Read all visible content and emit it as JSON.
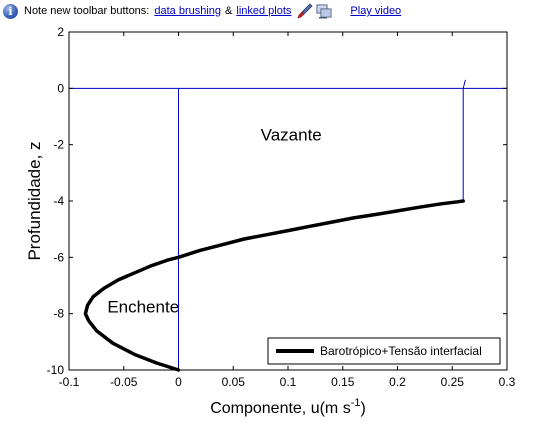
{
  "info_bar": {
    "icon": "info-icon",
    "message": "Note new toolbar buttons:",
    "link_brushing": "data brushing",
    "ampersand": "&",
    "link_linked": "linked plots",
    "brush_icon": "brush-icon",
    "linked_plots_icon": "linked-plots-icon",
    "play_video": "Play video"
  },
  "chart_data": {
    "type": "line",
    "xlabel": "Componente, u(m s",
    "xlabel_superscript": "-1",
    "xlabel_suffix": ")",
    "ylabel": "Profundidade, z",
    "xlim": [
      -0.1,
      0.3
    ],
    "ylim": [
      -10,
      2
    ],
    "xticks": [
      -0.1,
      -0.05,
      0,
      0.05,
      0.1,
      0.15,
      0.2,
      0.25,
      0.3
    ],
    "xtick_labels": [
      "-0.1",
      "-0.05",
      "0",
      "0.05",
      "0.1",
      "0.15",
      "0.2",
      "0.25",
      "0.3"
    ],
    "yticks": [
      -10,
      -8,
      -6,
      -4,
      -2,
      0,
      2
    ],
    "ytick_labels": [
      "-10",
      "-8",
      "-6",
      "-4",
      "-2",
      "0",
      "2"
    ],
    "grid": false,
    "legend_placement": "bottom-right",
    "series": [
      {
        "name": "Barotrópico+Tensão interfacial",
        "color": "#000000",
        "x": [
          0.0,
          -0.02,
          -0.04,
          -0.06,
          -0.075,
          -0.082,
          -0.085,
          -0.083,
          -0.078,
          -0.068,
          -0.055,
          -0.04,
          -0.025,
          -0.01,
          0.0,
          0.02,
          0.04,
          0.06,
          0.08,
          0.1,
          0.12,
          0.14,
          0.16,
          0.18,
          0.2,
          0.22,
          0.24,
          0.255,
          0.26
        ],
        "y": [
          -10.0,
          -9.75,
          -9.45,
          -9.05,
          -8.6,
          -8.25,
          -8.0,
          -7.7,
          -7.4,
          -7.1,
          -6.8,
          -6.55,
          -6.3,
          -6.1,
          -6.0,
          -5.75,
          -5.55,
          -5.35,
          -5.2,
          -5.05,
          -4.9,
          -4.75,
          -4.6,
          -4.48,
          -4.35,
          -4.22,
          -4.1,
          -4.03,
          -4.0
        ]
      }
    ],
    "reference_lines": {
      "color": "#0000cc",
      "horizontal_y": 0,
      "vertical_x": 0,
      "vertical_y_range": [
        -10,
        0
      ],
      "profile_x": [
        0.26,
        0.26,
        0.262
      ],
      "profile_y": [
        -4.0,
        0.0,
        0.3
      ]
    },
    "annotations": [
      {
        "text": "Vazante",
        "x": 0.075,
        "y": -1.85
      },
      {
        "text": "Enchente",
        "x": -0.065,
        "y": -7.95
      }
    ]
  }
}
